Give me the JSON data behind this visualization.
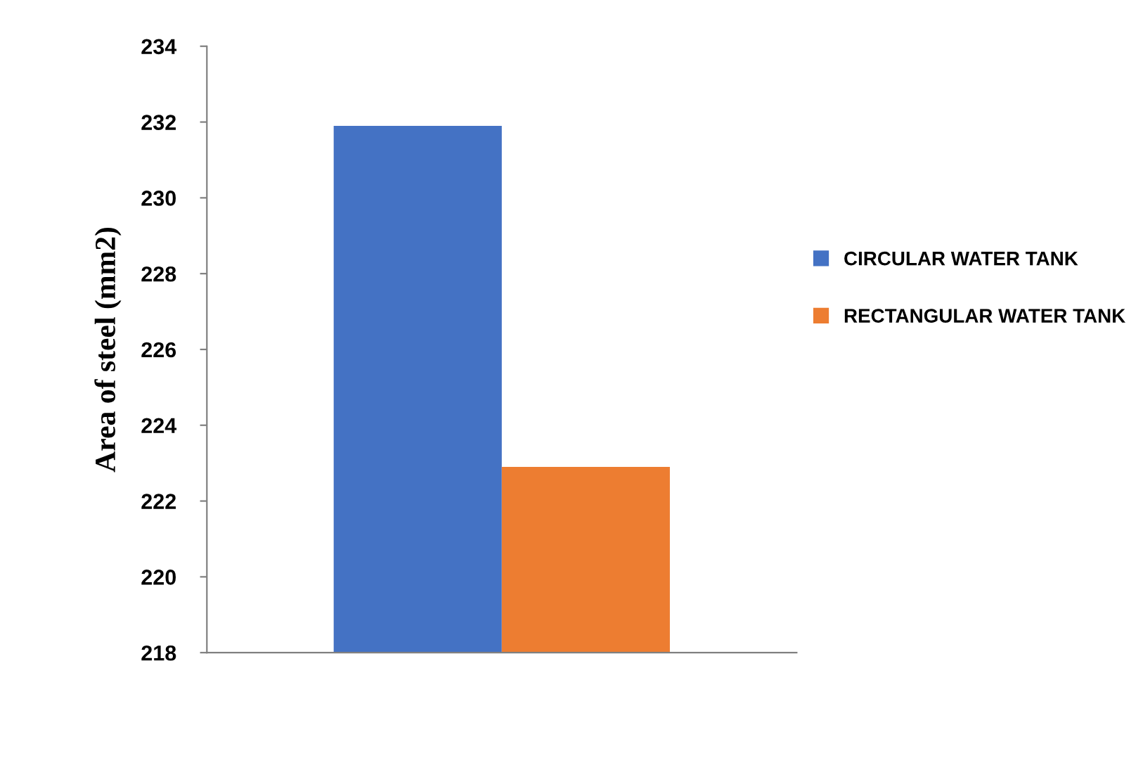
{
  "chart_data": {
    "type": "bar",
    "ylabel": "Area of steel (mm2)",
    "categories": [
      null
    ],
    "series": [
      {
        "name": "CIRCULAR WATER TANK",
        "color": "#4472c4",
        "values": [
          231.9
        ]
      },
      {
        "name": "RECTANGULAR WATER TANK",
        "color": "#ed7d31",
        "values": [
          222.9
        ]
      }
    ],
    "ylim": [
      218,
      234
    ],
    "yticks": [
      218,
      220,
      222,
      224,
      226,
      228,
      230,
      232,
      234
    ],
    "grid": false,
    "legend": "right"
  }
}
